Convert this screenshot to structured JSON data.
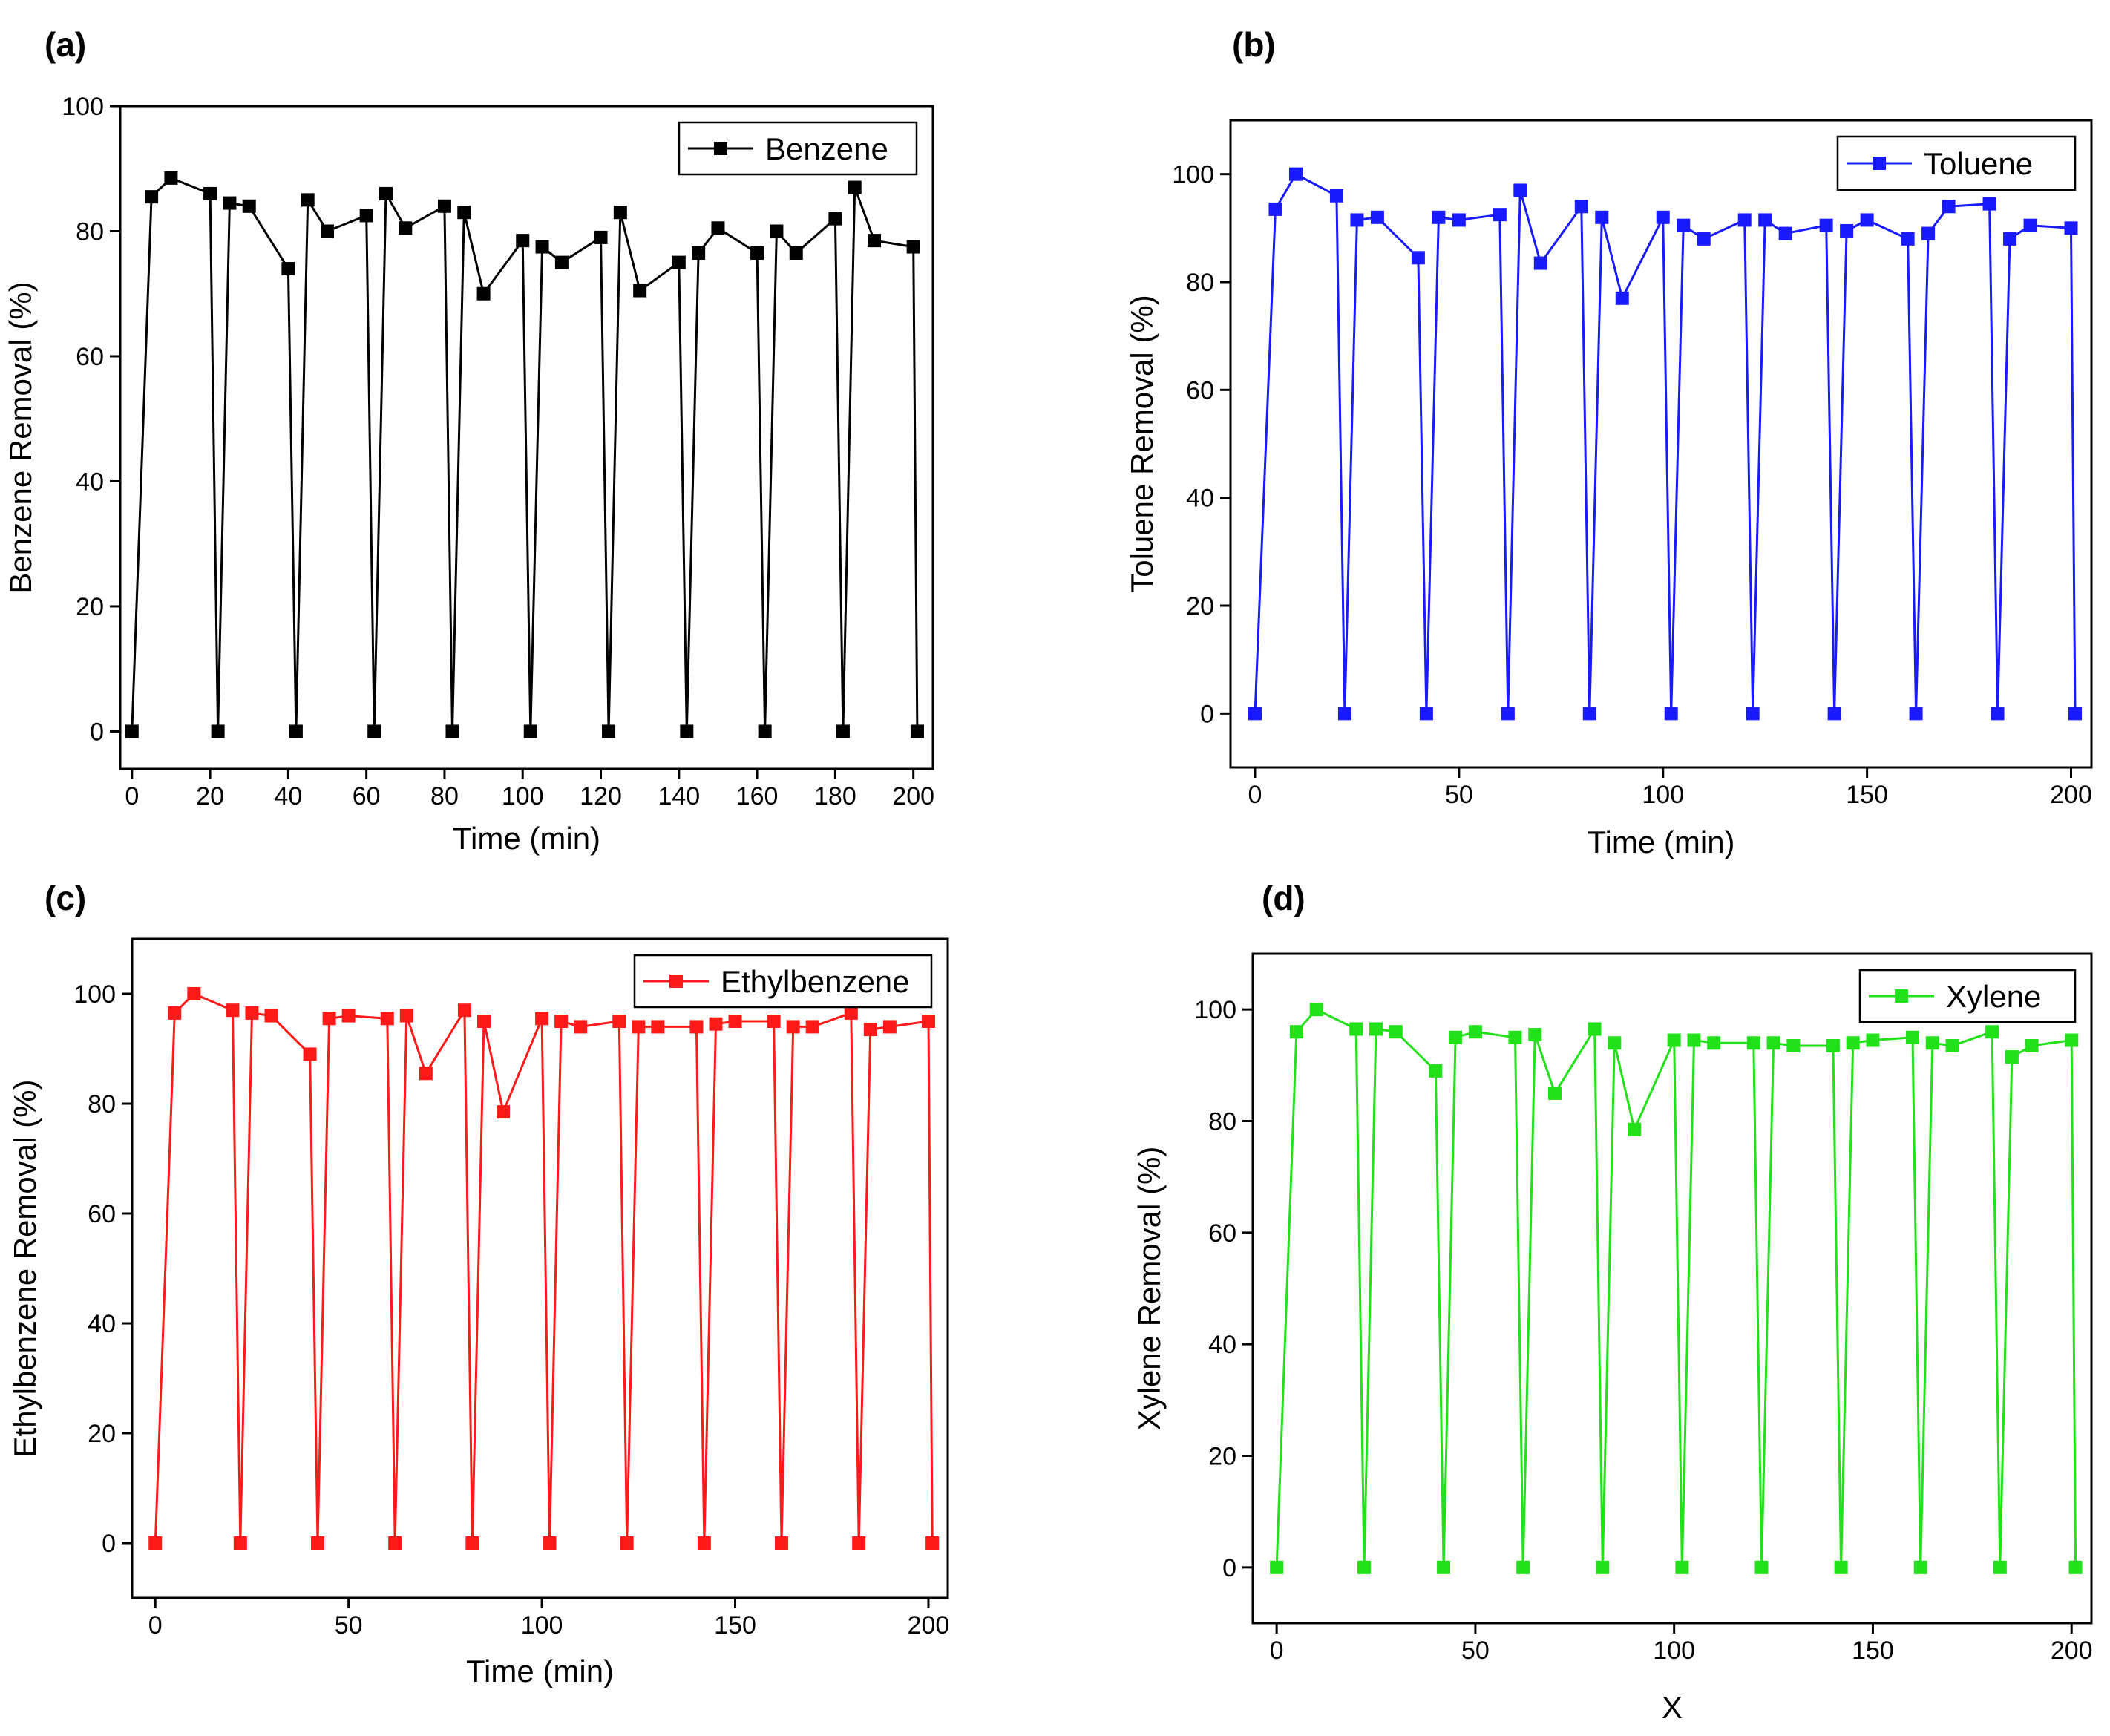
{
  "chart_data": [
    {
      "panel_label": "(a)",
      "type": "line",
      "title": "",
      "xlabel": "Time (min)",
      "ylabel": "Benzene Removal  (%)",
      "xlim": [
        -3,
        205
      ],
      "ylim": [
        -6,
        100
      ],
      "xticks": [
        0,
        20,
        40,
        60,
        80,
        100,
        120,
        140,
        160,
        180,
        200
      ],
      "yticks": [
        0,
        20,
        40,
        60,
        80,
        100
      ],
      "legend_position": "top-right",
      "grid": false,
      "color": "#000000",
      "series": [
        {
          "name": "Benzene",
          "x": [
            0,
            5,
            10,
            20,
            22,
            25,
            30,
            40,
            42,
            45,
            50,
            60,
            62,
            65,
            70,
            80,
            82,
            85,
            90,
            100,
            102,
            105,
            110,
            120,
            122,
            125,
            130,
            140,
            142,
            145,
            150,
            160,
            162,
            165,
            170,
            180,
            182,
            185,
            190,
            200,
            201
          ],
          "y": [
            0,
            85.5,
            88.5,
            86,
            0,
            84.5,
            84,
            74,
            0,
            85,
            80,
            82.5,
            0,
            86,
            80.5,
            84,
            0,
            83,
            70,
            78.5,
            0,
            77.5,
            75,
            79,
            0,
            83,
            70.5,
            75,
            0,
            76.5,
            80.5,
            76.5,
            0,
            80,
            76.5,
            82,
            0,
            87,
            78.5,
            77.5,
            0
          ]
        }
      ]
    },
    {
      "panel_label": "(b)",
      "type": "line",
      "title": "",
      "xlabel": "Time (min)",
      "ylabel": "Toluene Removal  (%)",
      "xlim": [
        -6,
        205
      ],
      "ylim": [
        -10,
        110
      ],
      "xticks": [
        0,
        50,
        100,
        150,
        200
      ],
      "yticks": [
        0,
        20,
        40,
        60,
        80,
        100
      ],
      "legend_position": "top-right",
      "grid": false,
      "color": "#1a1aff",
      "series": [
        {
          "name": "Toluene",
          "x": [
            0,
            5,
            10,
            20,
            22,
            25,
            30,
            40,
            42,
            45,
            50,
            60,
            62,
            65,
            70,
            80,
            82,
            85,
            90,
            100,
            102,
            105,
            110,
            120,
            122,
            125,
            130,
            140,
            142,
            145,
            150,
            160,
            162,
            165,
            170,
            180,
            182,
            185,
            190,
            200,
            201
          ],
          "y": [
            0,
            93.5,
            100,
            96,
            0,
            91.5,
            92,
            84.5,
            0,
            92,
            91.5,
            92.5,
            0,
            97,
            83.5,
            94,
            0,
            92,
            77,
            92,
            0,
            90.5,
            88,
            91.5,
            0,
            91.5,
            89,
            90.5,
            0,
            89.5,
            91.5,
            88,
            0,
            89,
            94,
            94.5,
            0,
            88,
            90.5,
            90,
            0
          ]
        }
      ]
    },
    {
      "panel_label": "(c)",
      "type": "line",
      "title": "",
      "xlabel": "Time (min)",
      "ylabel": "Ethylbenzene Removal  (%)",
      "xlim": [
        -6,
        205
      ],
      "ylim": [
        -10,
        110
      ],
      "xticks": [
        0,
        50,
        100,
        150,
        200
      ],
      "yticks": [
        0,
        20,
        40,
        60,
        80,
        100
      ],
      "legend_position": "top-right",
      "grid": false,
      "color": "#ff1a1a",
      "series": [
        {
          "name": "Ethylbenzene",
          "x": [
            0,
            5,
            10,
            20,
            22,
            25,
            30,
            40,
            42,
            45,
            50,
            60,
            62,
            65,
            70,
            80,
            82,
            85,
            90,
            100,
            102,
            105,
            110,
            120,
            122,
            125,
            130,
            140,
            142,
            145,
            150,
            160,
            162,
            165,
            170,
            180,
            182,
            185,
            190,
            200,
            201
          ],
          "y": [
            0,
            96.5,
            100,
            97,
            0,
            96.5,
            96,
            89,
            0,
            95.5,
            96,
            95.5,
            0,
            96,
            85.5,
            97,
            0,
            95,
            78.5,
            95.5,
            0,
            95,
            94,
            95,
            0,
            94,
            94,
            94,
            0,
            94.5,
            95,
            95,
            0,
            94,
            94,
            96.5,
            0,
            93.5,
            94,
            95,
            0
          ]
        }
      ]
    },
    {
      "panel_label": "(d)",
      "type": "line",
      "title": "",
      "xlabel": "X",
      "ylabel": "Xylene Removal  (%)",
      "xlim": [
        -6,
        205
      ],
      "ylim": [
        -10,
        110
      ],
      "xticks": [
        0,
        50,
        100,
        150,
        200
      ],
      "yticks": [
        0,
        20,
        40,
        60,
        80,
        100
      ],
      "legend_position": "top-right",
      "grid": false,
      "color": "#22e01a",
      "series": [
        {
          "name": "Xylene",
          "x": [
            0,
            5,
            10,
            20,
            22,
            25,
            30,
            40,
            42,
            45,
            50,
            60,
            62,
            65,
            70,
            80,
            82,
            85,
            90,
            100,
            102,
            105,
            110,
            120,
            122,
            125,
            130,
            140,
            142,
            145,
            150,
            160,
            162,
            165,
            170,
            180,
            182,
            185,
            190,
            200,
            201
          ],
          "y": [
            0,
            96,
            100,
            96.5,
            0,
            96.5,
            96,
            89,
            0,
            95,
            96,
            95,
            0,
            95.5,
            85,
            96.5,
            0,
            94,
            78.5,
            94.5,
            0,
            94.5,
            94,
            94,
            0,
            94,
            93.5,
            93.5,
            0,
            94,
            94.5,
            95,
            0,
            94,
            93.5,
            96,
            0,
            91.5,
            93.5,
            94.5,
            0
          ]
        }
      ]
    }
  ]
}
